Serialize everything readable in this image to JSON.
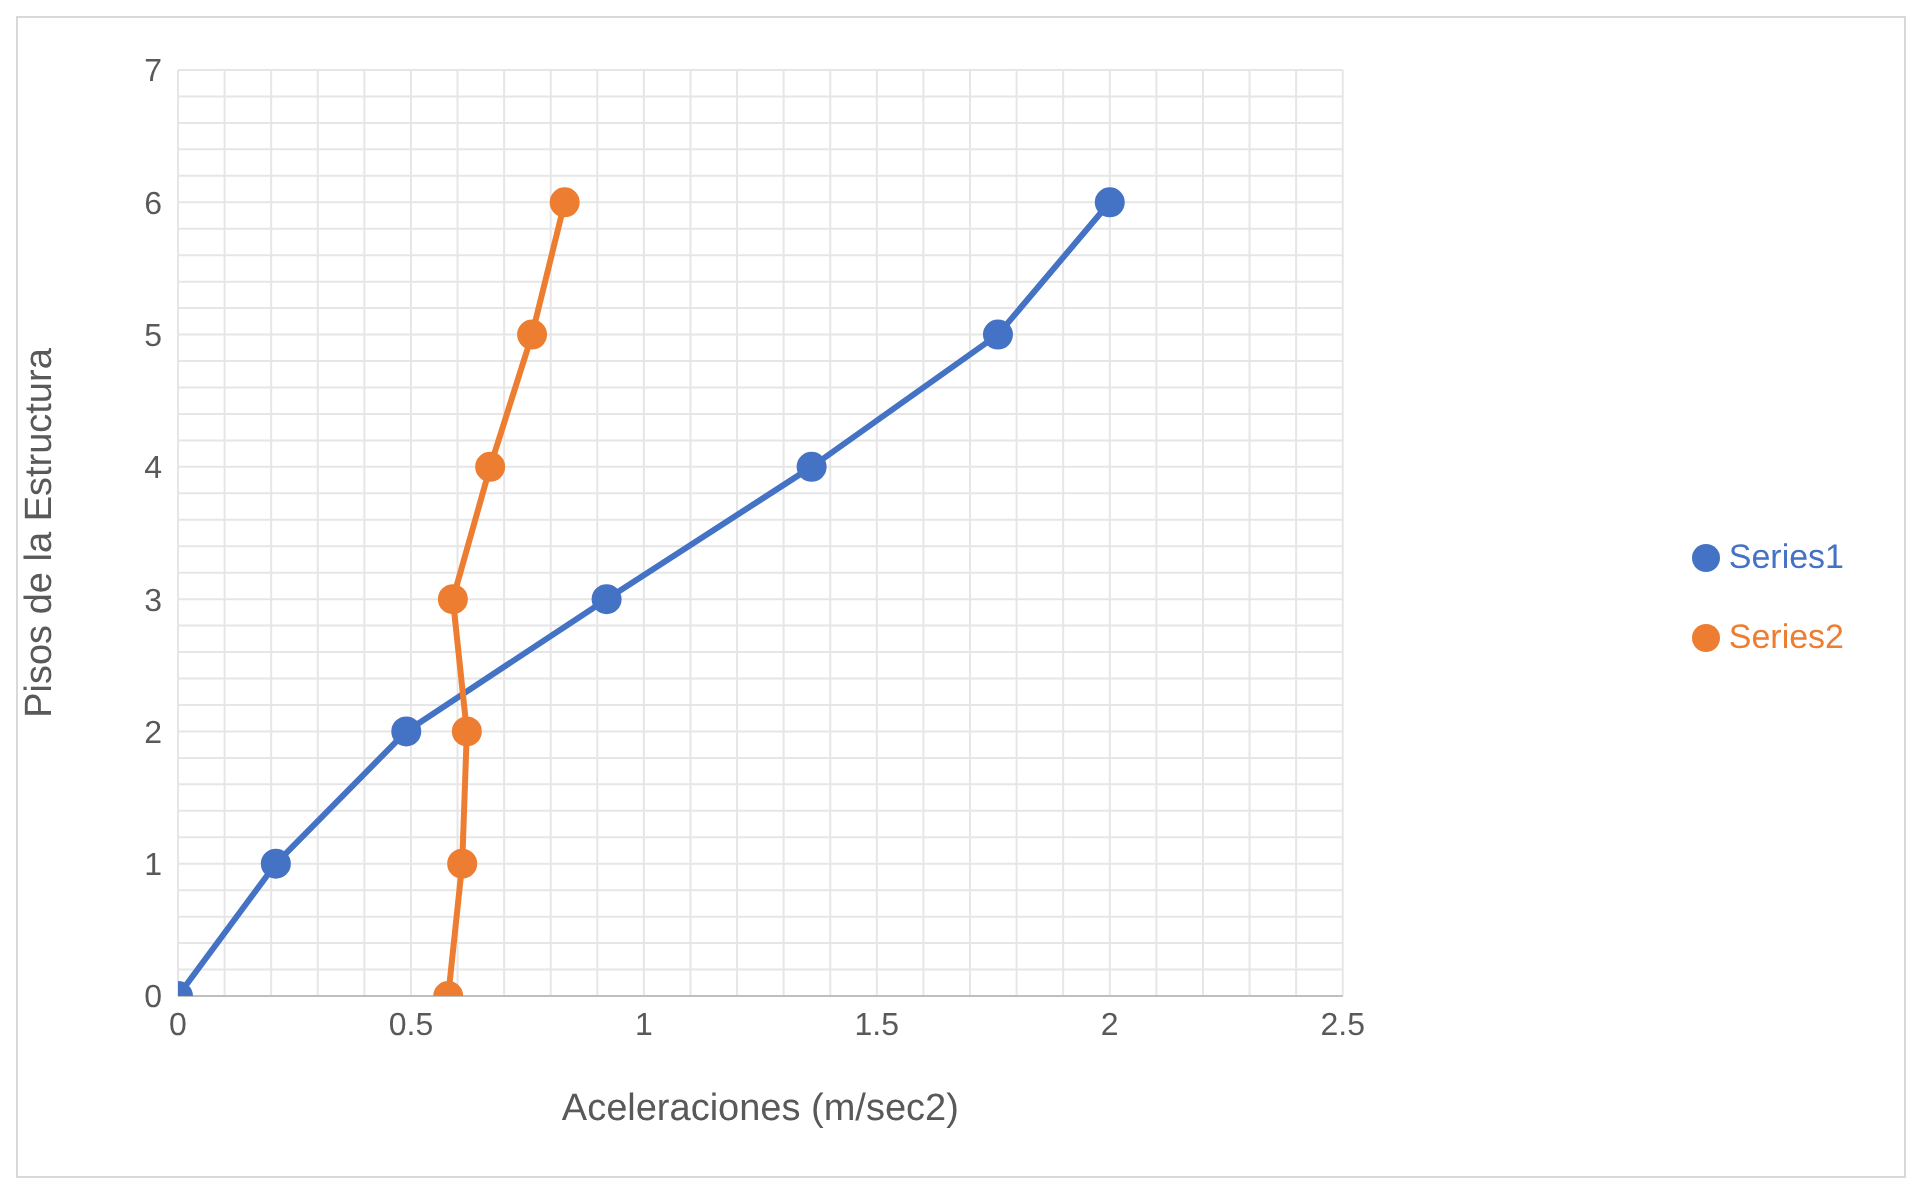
{
  "chart_data": {
    "type": "line",
    "xlabel": "Aceleraciones (m/sec2)",
    "ylabel": "Pisos de la Estructura",
    "xlim": [
      0,
      2.5
    ],
    "ylim": [
      0,
      7
    ],
    "xticks": [
      0,
      {
        "value": 0.1,
        "label": null
      },
      {
        "value": 0.2,
        "label": null
      },
      {
        "value": 0.3,
        "label": null
      },
      {
        "value": 0.4,
        "label": null
      },
      0.5,
      {
        "value": 0.6,
        "label": null
      },
      {
        "value": 0.7,
        "label": null
      },
      {
        "value": 0.8,
        "label": null
      },
      {
        "value": 0.9,
        "label": null
      },
      1,
      {
        "value": 1.1,
        "label": null
      },
      {
        "value": 1.2,
        "label": null
      },
      {
        "value": 1.3,
        "label": null
      },
      {
        "value": 1.4,
        "label": null
      },
      1.5,
      {
        "value": 1.6,
        "label": null
      },
      {
        "value": 1.7,
        "label": null
      },
      {
        "value": 1.8,
        "label": null
      },
      {
        "value": 1.9,
        "label": null
      },
      2,
      {
        "value": 2.1,
        "label": null
      },
      {
        "value": 2.2,
        "label": null
      },
      {
        "value": 2.3,
        "label": null
      },
      {
        "value": 2.4,
        "label": null
      },
      2.5
    ],
    "yticks": [
      0,
      {
        "value": 0.2,
        "label": null
      },
      {
        "value": 0.4,
        "label": null
      },
      {
        "value": 0.6,
        "label": null
      },
      {
        "value": 0.8,
        "label": null
      },
      1,
      {
        "value": 1.2,
        "label": null
      },
      {
        "value": 1.4,
        "label": null
      },
      {
        "value": 1.6,
        "label": null
      },
      {
        "value": 1.8,
        "label": null
      },
      2,
      {
        "value": 2.2,
        "label": null
      },
      {
        "value": 2.4,
        "label": null
      },
      {
        "value": 2.6,
        "label": null
      },
      {
        "value": 2.8,
        "label": null
      },
      3,
      {
        "value": 3.2,
        "label": null
      },
      {
        "value": 3.4,
        "label": null
      },
      {
        "value": 3.6,
        "label": null
      },
      {
        "value": 3.8,
        "label": null
      },
      4,
      {
        "value": 4.2,
        "label": null
      },
      {
        "value": 4.4,
        "label": null
      },
      {
        "value": 4.6,
        "label": null
      },
      {
        "value": 4.8,
        "label": null
      },
      5,
      {
        "value": 5.2,
        "label": null
      },
      {
        "value": 5.4,
        "label": null
      },
      {
        "value": 5.6,
        "label": null
      },
      {
        "value": 5.8,
        "label": null
      },
      6,
      {
        "value": 6.2,
        "label": null
      },
      {
        "value": 6.4,
        "label": null
      },
      {
        "value": 6.6,
        "label": null
      },
      {
        "value": 6.8,
        "label": null
      },
      7
    ],
    "grid": true,
    "legend": "right",
    "marker": "circle",
    "line_style": "solid",
    "series": [
      {
        "name": "Series1",
        "color": "#4472c4",
        "x": [
          0,
          0.21,
          0.49,
          0.92,
          1.36,
          1.76,
          2.0
        ],
        "values": [
          0,
          1,
          2,
          3,
          4,
          5,
          6
        ]
      },
      {
        "name": "Series2",
        "color": "#ed7d31",
        "x": [
          0.58,
          0.61,
          0.62,
          0.59,
          0.67,
          0.76,
          0.83
        ],
        "values": [
          0,
          1,
          2,
          3,
          4,
          5,
          6
        ]
      }
    ]
  }
}
